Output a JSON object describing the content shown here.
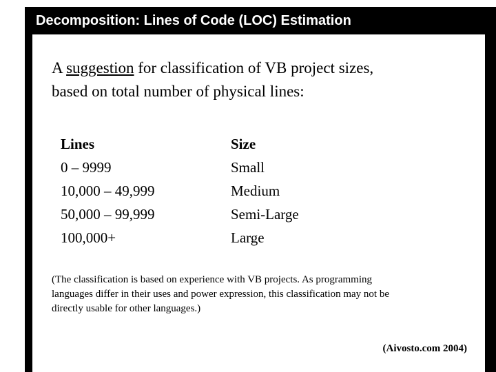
{
  "slide": {
    "title": "Decomposition: Lines of Code (LOC) Estimation",
    "intro": {
      "pre": "A ",
      "underlined": "suggestion",
      "post": " for classification of VB project sizes,",
      "line2": "based on total number of physical lines:"
    },
    "table": {
      "headers": [
        "Lines",
        "Size"
      ],
      "rows": [
        [
          "0 – 9999",
          "Small"
        ],
        [
          "10,000 – 49,999",
          "Medium"
        ],
        [
          "50,000 – 99,999",
          "Semi-Large"
        ],
        [
          "100,000+",
          "Large"
        ]
      ]
    },
    "note_lines": [
      "(The classification is based on experience with VB projects.  As programming",
      "languages differ in their uses and power expression, this classification may not be",
      "directly usable for other languages.)"
    ],
    "credit": "(Aivosto.com 2004)",
    "colors": {
      "title_bg": "#000000",
      "title_fg": "#ffffff",
      "text": "#000000",
      "background": "#ffffff"
    }
  }
}
